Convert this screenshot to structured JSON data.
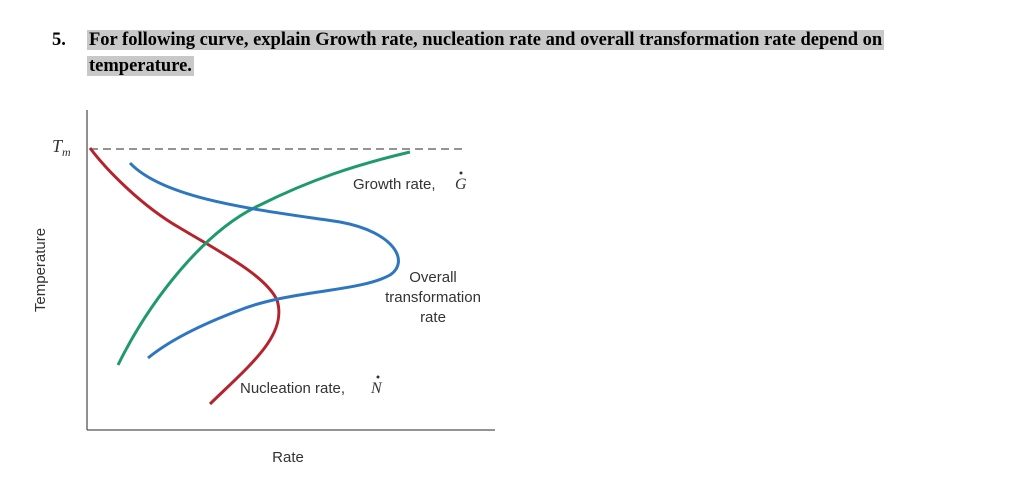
{
  "question": {
    "number": "5.",
    "line1": "For following curve, explain Growth rate, nucleation rate and overall transformation rate depend on",
    "line2": "temperature."
  },
  "figure": {
    "tm_label": "T",
    "tm_subscript": "m",
    "y_axis_label": "Temperature",
    "x_axis_label": "Rate",
    "growth_label": "Growth rate,",
    "growth_symbol": "G",
    "nucleation_label": "Nucleation rate,",
    "nucleation_symbol": "N",
    "overall_label_line1": "Overall",
    "overall_label_line2": "transformation",
    "overall_label_line3": "rate",
    "colors": {
      "growth": "#1f9a6a",
      "nucleation": "#b3242c",
      "overall": "#2e76c0",
      "axis": "#555555",
      "dashed": "#555555"
    }
  }
}
